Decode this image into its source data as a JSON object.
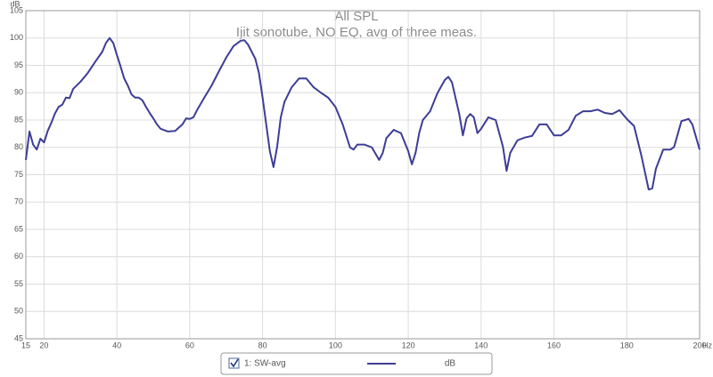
{
  "chart_data": {
    "type": "line",
    "title": "All SPL",
    "subtitle": "Ijit sonotube, NO EQ, avg of three meas.",
    "y_unit": "dB",
    "x_unit": "Hz",
    "xlim": [
      15,
      200
    ],
    "ylim": [
      45,
      105
    ],
    "xticks": [
      15,
      20,
      40,
      60,
      80,
      100,
      120,
      140,
      160,
      180,
      200
    ],
    "yticks": [
      45,
      50,
      55,
      60,
      65,
      70,
      75,
      80,
      85,
      90,
      95,
      100,
      105
    ],
    "grid": true,
    "x": [
      15,
      16,
      17,
      18,
      19,
      20,
      21,
      22,
      23,
      24,
      25,
      26,
      27,
      28,
      30,
      32,
      34,
      36,
      37,
      38,
      39,
      40,
      41,
      42,
      43,
      44,
      45,
      46,
      47,
      48,
      49,
      50,
      51,
      52,
      54,
      56,
      58,
      59,
      60,
      61,
      62,
      64,
      66,
      68,
      70,
      72,
      74,
      75,
      76,
      78,
      79,
      80,
      81,
      82,
      83,
      84,
      85,
      86,
      88,
      90,
      92,
      94,
      96,
      98,
      100,
      102,
      104,
      105,
      106,
      108,
      110,
      112,
      113,
      114,
      116,
      118,
      120,
      121,
      122,
      123,
      124,
      126,
      128,
      130,
      131,
      132,
      134,
      135,
      136,
      137,
      138,
      139,
      140,
      142,
      144,
      146,
      147,
      148,
      150,
      152,
      154,
      156,
      158,
      160,
      162,
      164,
      166,
      168,
      170,
      172,
      174,
      176,
      178,
      180,
      182,
      184,
      186,
      187,
      188,
      190,
      192,
      193,
      195,
      197,
      198,
      200
    ],
    "series": [
      {
        "name": "1: SW-avg",
        "color": "#3d3d96",
        "values": [
          77.7,
          82.9,
          80.5,
          79.6,
          81.6,
          80.9,
          83,
          84.5,
          86.2,
          87.4,
          87.8,
          89.1,
          89,
          90.7,
          92,
          93.6,
          95.6,
          97.5,
          99.1,
          100,
          99.1,
          96.9,
          94.8,
          92.6,
          91.3,
          89.7,
          89.1,
          89.1,
          88.6,
          87.4,
          86.3,
          85.3,
          84.2,
          83.4,
          82.9,
          83,
          84.2,
          85.3,
          85.2,
          85.5,
          86.8,
          89.1,
          91.3,
          93.9,
          96.4,
          98.5,
          99.5,
          99.6,
          98.8,
          96.2,
          93.6,
          89.1,
          84.2,
          79.3,
          76.4,
          80.1,
          85.5,
          88.3,
          91,
          92.6,
          92.6,
          91,
          90,
          89.1,
          87.4,
          84.2,
          80,
          79.6,
          80.5,
          80.5,
          80,
          77.7,
          79,
          81.7,
          83.2,
          82.6,
          79.3,
          76.9,
          79,
          82.6,
          85,
          86.6,
          89.9,
          92.3,
          92.9,
          91.9,
          86.1,
          82.2,
          85.3,
          86.1,
          85.5,
          82.6,
          83.4,
          85.5,
          85,
          80.1,
          75.7,
          79,
          81.3,
          81.8,
          82.1,
          84.2,
          84.2,
          82.2,
          82.2,
          83.2,
          85.8,
          86.6,
          86.6,
          86.9,
          86.3,
          86.1,
          86.8,
          85.2,
          83.9,
          78.5,
          72.3,
          72.5,
          76.1,
          79.6,
          79.6,
          80.1,
          84.8,
          85.2,
          84.2,
          79.6
        ]
      }
    ]
  }
}
